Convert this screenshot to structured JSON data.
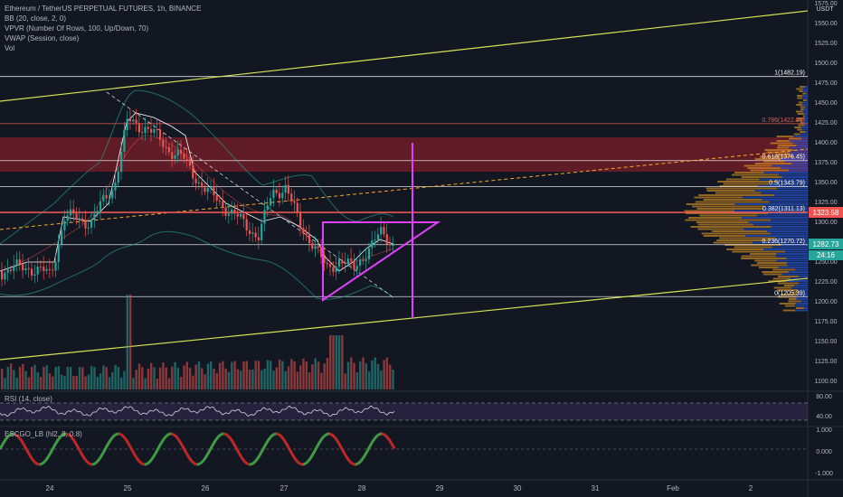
{
  "legend": {
    "symbol_line": "Ethereum / TetherUS PERPETUAL FUTURES, 1h, BINANCE",
    "bb": "BB (20, close, 2, 0)",
    "vpvr": "VPVR (Number Of Rows, 100, Up/Down, 70)",
    "vwap": "VWAP (Session, close)",
    "vol": "Vol"
  },
  "rsi_label": "RSI (14, close)",
  "escgo_label": "ESCGO_LB (hl2, 8, 0.8)",
  "currency": "USDT",
  "price_axis": [
    "1575.00",
    "1550.00",
    "1525.00",
    "1500.00",
    "1475.00",
    "1450.00",
    "1425.00",
    "1400.00",
    "1375.00",
    "1350.00",
    "1325.00",
    "1300.00",
    "1275.00",
    "1250.00",
    "1225.00",
    "1200.00",
    "1175.00",
    "1150.00",
    "1125.00",
    "1100.00"
  ],
  "rsi_axis": [
    "80.00",
    "40.00"
  ],
  "escgo_axis": [
    "1.000",
    "0.000",
    "-1.000"
  ],
  "time_axis": [
    "24",
    "25",
    "26",
    "27",
    "28",
    "29",
    "30",
    "31",
    "Feb",
    "2"
  ],
  "price_labels": {
    "current_red": "1323.58",
    "current_teal": "1282.73",
    "countdown": "24:16"
  },
  "fib_levels": [
    {
      "label": "1(1482.19)",
      "price": 1482.19,
      "color": "#ffffff"
    },
    {
      "label": "0.786(1422.95)",
      "price": 1422.95,
      "color": "#e05a4f"
    },
    {
      "label": "0.618(1376.45)",
      "price": 1376.45,
      "color": "#ffffff"
    },
    {
      "label": "0.5(1343.79)",
      "price": 1343.79,
      "color": "#ffffff"
    },
    {
      "label": "0.382(1311.13)",
      "price": 1311.13,
      "color": "#ffffff"
    },
    {
      "label": "0.236(1270.72)",
      "price": 1270.72,
      "color": "#ffffff"
    },
    {
      "label": "0(1205.39)",
      "price": 1205.39,
      "color": "#ffffff"
    }
  ],
  "colors": {
    "background": "#131722",
    "up": "#26a69a",
    "down": "#ef5350",
    "triangle": "#e040fb",
    "trend": "#d4e157",
    "red_zone": "#7a1f2a",
    "vpvr_up": "#2962ff",
    "vpvr_down": "#f9a825"
  }
}
